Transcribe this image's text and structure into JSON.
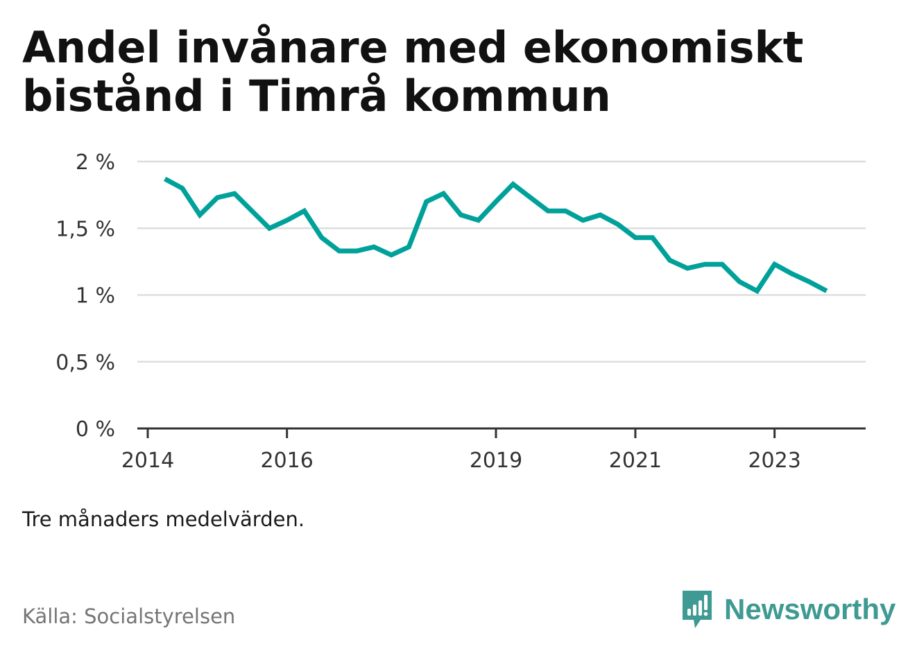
{
  "title": "Andel invånare med ekonomiskt bistånd i Timrå kommun",
  "note": "Tre månaders medelvärden.",
  "source": "Källa: Socialstyrelsen",
  "brand": {
    "name": "Newsworthy",
    "color": "#3e9a92"
  },
  "chart_data": {
    "type": "line",
    "title": "Andel invånare med ekonomiskt bistånd i Timrå kommun",
    "xlabel": "",
    "ylabel": "",
    "x_ticks": [
      "2014",
      "2016",
      "2019",
      "2021",
      "2023"
    ],
    "y_ticks": [
      "0 %",
      "0,5 %",
      "1 %",
      "1,5 %",
      "2 %"
    ],
    "ylim": [
      0,
      2
    ],
    "grid": true,
    "line_color": "#00a19a",
    "series": [
      {
        "x": [
          "2014-04",
          "2014-07",
          "2014-10",
          "2015-01",
          "2015-04",
          "2015-07",
          "2015-10",
          "2016-01",
          "2016-04",
          "2016-07",
          "2016-10",
          "2017-01",
          "2017-04",
          "2017-07",
          "2017-10",
          "2018-01",
          "2018-04",
          "2018-07",
          "2018-10",
          "2019-01",
          "2019-04",
          "2019-07",
          "2019-10",
          "2020-01",
          "2020-04",
          "2020-07",
          "2020-10",
          "2021-01",
          "2021-04",
          "2021-07",
          "2021-10",
          "2022-01",
          "2022-04",
          "2022-07",
          "2022-10",
          "2023-01",
          "2023-04",
          "2023-07",
          "2023-10"
        ],
        "values": [
          1.87,
          1.8,
          1.6,
          1.73,
          1.76,
          1.63,
          1.5,
          1.56,
          1.63,
          1.43,
          1.33,
          1.33,
          1.36,
          1.3,
          1.36,
          1.7,
          1.76,
          1.6,
          1.56,
          1.7,
          1.83,
          1.73,
          1.63,
          1.63,
          1.56,
          1.6,
          1.53,
          1.43,
          1.43,
          1.26,
          1.2,
          1.23,
          1.23,
          1.1,
          1.03,
          1.23,
          1.16,
          1.1,
          1.03
        ]
      }
    ]
  }
}
